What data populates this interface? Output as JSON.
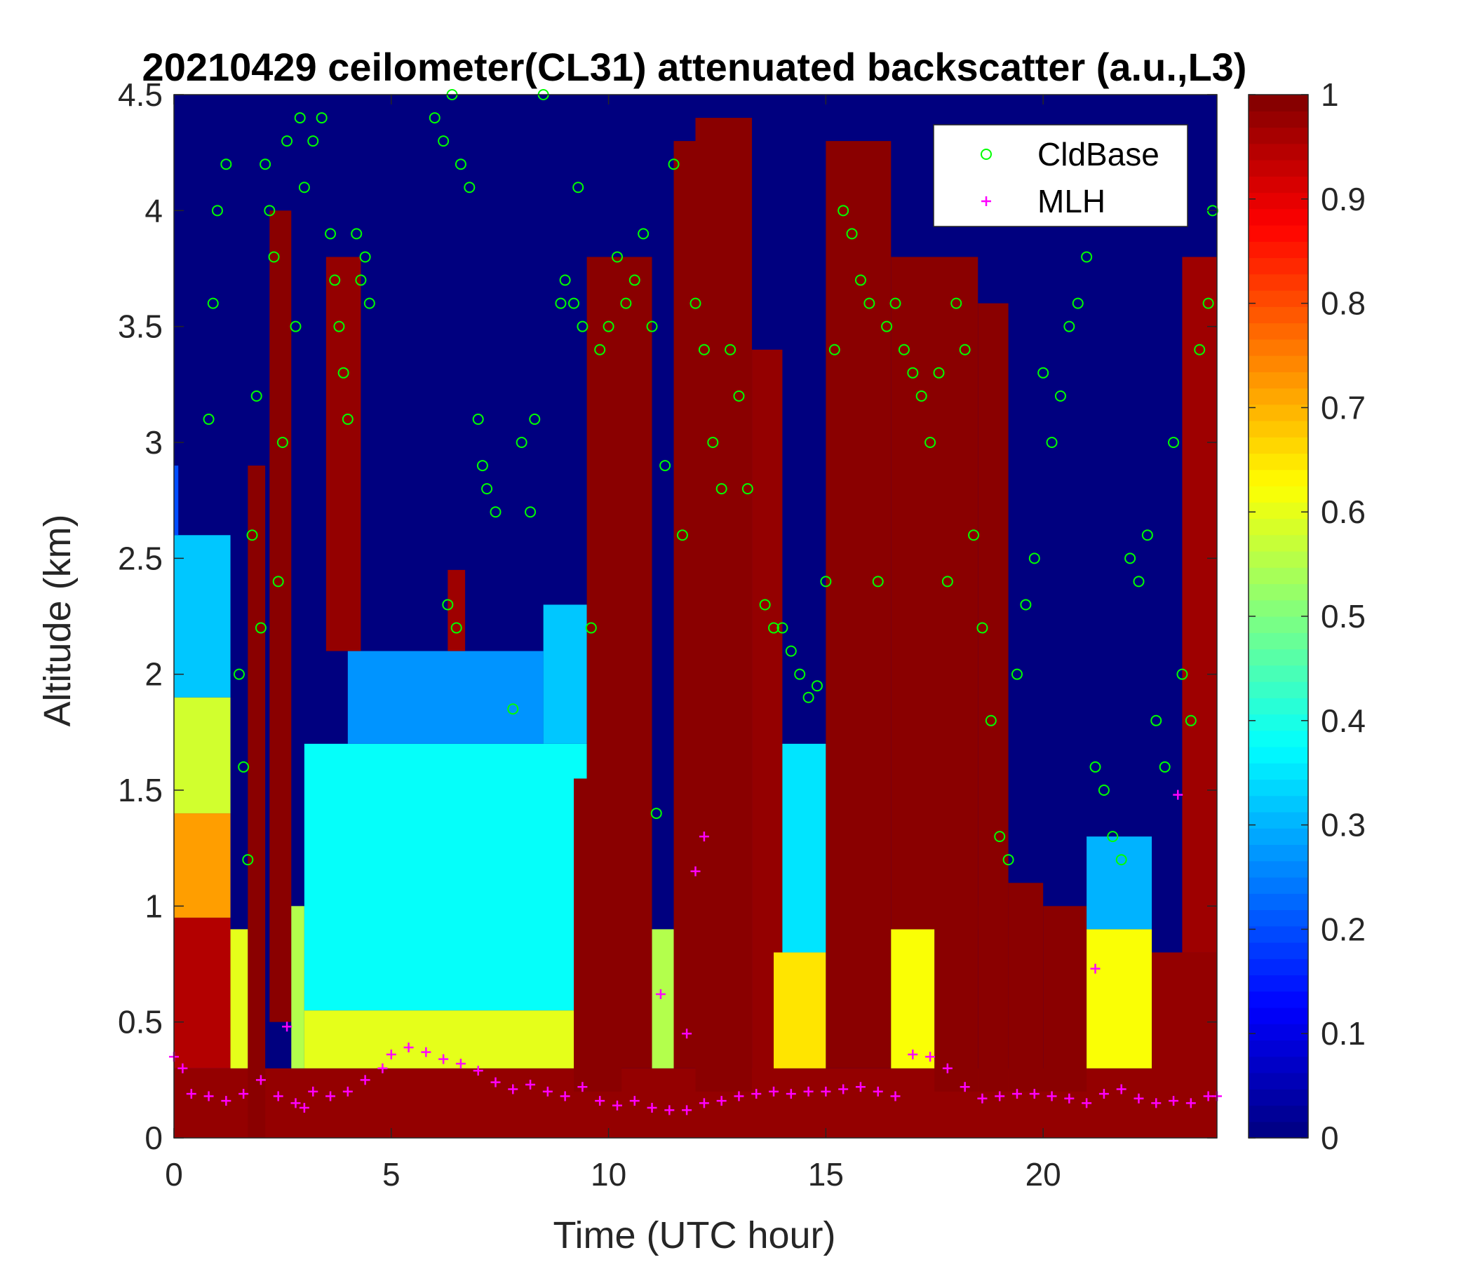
{
  "chart_data": {
    "type": "heatmap",
    "title": "20210429 ceilometer(CL31) attenuated backscatter (a.u.,L3)",
    "xlabel": "Time (UTC hour)",
    "ylabel": "Altitude (km)",
    "xlim": [
      0,
      24
    ],
    "ylim": [
      0,
      4.5
    ],
    "xticks": [
      0,
      5,
      10,
      15,
      20
    ],
    "xtick_labels": [
      "0",
      "5",
      "10",
      "15",
      "20"
    ],
    "yticks": [
      0,
      0.5,
      1,
      1.5,
      2,
      2.5,
      3,
      3.5,
      4,
      4.5
    ],
    "ytick_labels": [
      "0",
      "0.5",
      "1",
      "1.5",
      "2",
      "2.5",
      "3",
      "3.5",
      "4",
      "4.5"
    ],
    "colorbar": {
      "colormap": "jet",
      "clim": [
        0,
        1
      ],
      "ticks": [
        0,
        0.1,
        0.2,
        0.3,
        0.4,
        0.5,
        0.6,
        0.7,
        0.8,
        0.9,
        1
      ],
      "tick_labels": [
        "0",
        "0.1",
        "0.2",
        "0.3",
        "0.4",
        "0.5",
        "0.6",
        "0.7",
        "0.8",
        "0.9",
        "1"
      ]
    },
    "background_colors": [
      "#00007f",
      "#0000ff",
      "#00ffff",
      "#ffff00",
      "#ff0000",
      "#7f0000"
    ],
    "heatmap_regions": [
      {
        "t0": 0,
        "t1": 24,
        "h0": 0,
        "h1": 0.3,
        "v": 0.98
      },
      {
        "t0": 0,
        "t1": 1.3,
        "h0": 0.3,
        "h1": 0.95,
        "v": 0.95
      },
      {
        "t0": 0,
        "t1": 1.3,
        "h0": 0.95,
        "h1": 1.4,
        "v": 0.72
      },
      {
        "t0": 0,
        "t1": 1.3,
        "h0": 1.4,
        "h1": 1.9,
        "v": 0.58
      },
      {
        "t0": 0,
        "t1": 1.3,
        "h0": 1.9,
        "h1": 2.6,
        "v": 0.32
      },
      {
        "t0": 0,
        "t1": 0.1,
        "h0": 2.6,
        "h1": 2.9,
        "v": 0.2
      },
      {
        "t0": 1.3,
        "t1": 1.7,
        "h0": 0.3,
        "h1": 0.9,
        "v": 0.6
      },
      {
        "t0": 1.7,
        "t1": 2.1,
        "h0": 0,
        "h1": 2.9,
        "v": 0.99
      },
      {
        "t0": 2.2,
        "t1": 2.7,
        "h0": 0.5,
        "h1": 4.0,
        "v": 0.99
      },
      {
        "t0": 2.7,
        "t1": 3.0,
        "h0": 0.3,
        "h1": 1.0,
        "v": 0.55
      },
      {
        "t0": 3.0,
        "t1": 9.5,
        "h0": 0.3,
        "h1": 0.55,
        "v": 0.6
      },
      {
        "t0": 3.0,
        "t1": 9.5,
        "h0": 0.55,
        "h1": 1.7,
        "v": 0.38
      },
      {
        "t0": 4.0,
        "t1": 8.5,
        "h0": 1.7,
        "h1": 2.1,
        "v": 0.27
      },
      {
        "t0": 3.5,
        "t1": 4.3,
        "h0": 2.1,
        "h1": 3.8,
        "v": 0.98
      },
      {
        "t0": 6.3,
        "t1": 6.7,
        "h0": 2.1,
        "h1": 2.45,
        "v": 0.97
      },
      {
        "t0": 8.5,
        "t1": 9.5,
        "h0": 1.7,
        "h1": 2.3,
        "v": 0.32
      },
      {
        "t0": 9.2,
        "t1": 10.3,
        "h0": 0.2,
        "h1": 1.55,
        "v": 0.99
      },
      {
        "t0": 9.5,
        "t1": 11.0,
        "h0": 0.3,
        "h1": 3.8,
        "v": 0.99
      },
      {
        "t0": 11.0,
        "t1": 11.5,
        "h0": 0.3,
        "h1": 0.9,
        "v": 0.55
      },
      {
        "t0": 11.5,
        "t1": 12.0,
        "h0": 0.3,
        "h1": 4.3,
        "v": 0.99
      },
      {
        "t0": 12.0,
        "t1": 13.3,
        "h0": 0.2,
        "h1": 4.4,
        "v": 0.99
      },
      {
        "t0": 13.3,
        "t1": 14.0,
        "h0": 0.2,
        "h1": 3.4,
        "v": 0.98
      },
      {
        "t0": 13.8,
        "t1": 15.0,
        "h0": 0.3,
        "h1": 0.8,
        "v": 0.65
      },
      {
        "t0": 14.0,
        "t1": 15.0,
        "h0": 0.8,
        "h1": 1.7,
        "v": 0.35
      },
      {
        "t0": 15.0,
        "t1": 16.5,
        "h0": 0.3,
        "h1": 4.3,
        "v": 0.99
      },
      {
        "t0": 16.5,
        "t1": 17.5,
        "h0": 0.3,
        "h1": 0.9,
        "v": 0.62
      },
      {
        "t0": 16.5,
        "t1": 18.5,
        "h0": 0.9,
        "h1": 3.8,
        "v": 0.99
      },
      {
        "t0": 17.5,
        "t1": 18.5,
        "h0": 0.2,
        "h1": 1.0,
        "v": 0.99
      },
      {
        "t0": 18.5,
        "t1": 19.2,
        "h0": 0.2,
        "h1": 3.6,
        "v": 0.99
      },
      {
        "t0": 19.2,
        "t1": 20.0,
        "h0": 0.2,
        "h1": 1.1,
        "v": 0.99
      },
      {
        "t0": 20.0,
        "t1": 21.0,
        "h0": 0.2,
        "h1": 1.0,
        "v": 0.99
      },
      {
        "t0": 21.0,
        "t1": 22.5,
        "h0": 0.3,
        "h1": 0.9,
        "v": 0.62
      },
      {
        "t0": 21.0,
        "t1": 22.5,
        "h0": 0.9,
        "h1": 1.3,
        "v": 0.3
      },
      {
        "t0": 22.5,
        "t1": 24.0,
        "h0": 0.2,
        "h1": 0.8,
        "v": 0.98
      },
      {
        "t0": 23.2,
        "t1": 24.0,
        "h0": 0.8,
        "h1": 3.8,
        "v": 0.97
      }
    ],
    "series": [
      {
        "name": "CldBase",
        "marker": "circle",
        "color": "#00ff00",
        "points": [
          [
            0.8,
            3.1
          ],
          [
            0.9,
            3.6
          ],
          [
            1.0,
            4.0
          ],
          [
            1.2,
            4.2
          ],
          [
            1.5,
            2.0
          ],
          [
            1.6,
            1.6
          ],
          [
            1.7,
            1.2
          ],
          [
            1.8,
            2.6
          ],
          [
            1.9,
            3.2
          ],
          [
            2.0,
            2.2
          ],
          [
            2.1,
            4.2
          ],
          [
            2.2,
            4.0
          ],
          [
            2.3,
            3.8
          ],
          [
            2.4,
            2.4
          ],
          [
            2.5,
            3.0
          ],
          [
            2.6,
            4.3
          ],
          [
            2.8,
            3.5
          ],
          [
            2.9,
            4.4
          ],
          [
            3.0,
            4.1
          ],
          [
            3.2,
            4.3
          ],
          [
            3.4,
            4.4
          ],
          [
            3.6,
            3.9
          ],
          [
            3.7,
            3.7
          ],
          [
            3.8,
            3.5
          ],
          [
            3.9,
            3.3
          ],
          [
            4.0,
            3.1
          ],
          [
            4.2,
            3.9
          ],
          [
            4.3,
            3.7
          ],
          [
            4.4,
            3.8
          ],
          [
            4.5,
            3.6
          ],
          [
            6.0,
            4.4
          ],
          [
            6.2,
            4.3
          ],
          [
            6.4,
            4.5
          ],
          [
            6.6,
            4.2
          ],
          [
            6.8,
            4.1
          ],
          [
            6.3,
            2.3
          ],
          [
            6.5,
            2.2
          ],
          [
            7.0,
            3.1
          ],
          [
            7.1,
            2.9
          ],
          [
            7.2,
            2.8
          ],
          [
            7.4,
            2.7
          ],
          [
            7.8,
            1.85
          ],
          [
            8.0,
            3.0
          ],
          [
            8.2,
            2.7
          ],
          [
            8.3,
            3.1
          ],
          [
            8.5,
            4.5
          ],
          [
            8.9,
            3.6
          ],
          [
            9.0,
            3.7
          ],
          [
            9.2,
            3.6
          ],
          [
            9.4,
            3.5
          ],
          [
            9.3,
            4.1
          ],
          [
            9.6,
            2.2
          ],
          [
            9.8,
            3.4
          ],
          [
            10.0,
            3.5
          ],
          [
            10.2,
            3.8
          ],
          [
            10.4,
            3.6
          ],
          [
            10.6,
            3.7
          ],
          [
            10.8,
            3.9
          ],
          [
            11.0,
            3.5
          ],
          [
            11.1,
            1.4
          ],
          [
            11.3,
            2.9
          ],
          [
            11.5,
            4.2
          ],
          [
            11.7,
            2.6
          ],
          [
            12.0,
            3.6
          ],
          [
            12.2,
            3.4
          ],
          [
            12.4,
            3.0
          ],
          [
            12.6,
            2.8
          ],
          [
            12.8,
            3.4
          ],
          [
            13.0,
            3.2
          ],
          [
            13.2,
            2.8
          ],
          [
            13.6,
            2.3
          ],
          [
            13.8,
            2.2
          ],
          [
            14.0,
            2.2
          ],
          [
            14.2,
            2.1
          ],
          [
            14.4,
            2.0
          ],
          [
            14.6,
            1.9
          ],
          [
            14.8,
            1.95
          ],
          [
            15.0,
            2.4
          ],
          [
            15.2,
            3.4
          ],
          [
            15.4,
            4.0
          ],
          [
            15.6,
            3.9
          ],
          [
            15.8,
            3.7
          ],
          [
            16.0,
            3.6
          ],
          [
            16.2,
            2.4
          ],
          [
            16.4,
            3.5
          ],
          [
            16.6,
            3.6
          ],
          [
            16.8,
            3.4
          ],
          [
            17.0,
            3.3
          ],
          [
            17.2,
            3.2
          ],
          [
            17.4,
            3.0
          ],
          [
            17.6,
            3.3
          ],
          [
            17.8,
            2.4
          ],
          [
            18.0,
            3.6
          ],
          [
            18.2,
            3.4
          ],
          [
            18.4,
            2.6
          ],
          [
            18.6,
            2.2
          ],
          [
            18.8,
            1.8
          ],
          [
            19.0,
            1.3
          ],
          [
            19.2,
            1.2
          ],
          [
            19.4,
            2.0
          ],
          [
            19.6,
            2.3
          ],
          [
            19.8,
            2.5
          ],
          [
            20.0,
            3.3
          ],
          [
            20.2,
            3.0
          ],
          [
            20.4,
            3.2
          ],
          [
            20.6,
            3.5
          ],
          [
            20.8,
            3.6
          ],
          [
            21.0,
            3.8
          ],
          [
            21.2,
            1.6
          ],
          [
            21.4,
            1.5
          ],
          [
            21.6,
            1.3
          ],
          [
            21.8,
            1.2
          ],
          [
            22.0,
            2.5
          ],
          [
            22.2,
            2.4
          ],
          [
            22.4,
            2.6
          ],
          [
            22.6,
            1.8
          ],
          [
            22.8,
            1.6
          ],
          [
            23.0,
            3.0
          ],
          [
            23.2,
            2.0
          ],
          [
            23.4,
            1.8
          ],
          [
            23.6,
            3.4
          ],
          [
            23.8,
            3.6
          ],
          [
            23.9,
            4.0
          ]
        ]
      },
      {
        "name": "MLH",
        "marker": "plus",
        "color": "#ff00ff",
        "points": [
          [
            0.0,
            0.35
          ],
          [
            0.2,
            0.3
          ],
          [
            0.4,
            0.19
          ],
          [
            0.8,
            0.18
          ],
          [
            1.2,
            0.16
          ],
          [
            1.6,
            0.19
          ],
          [
            2.0,
            0.25
          ],
          [
            2.4,
            0.18
          ],
          [
            2.6,
            0.48
          ],
          [
            2.8,
            0.15
          ],
          [
            3.0,
            0.13
          ],
          [
            3.2,
            0.2
          ],
          [
            3.6,
            0.18
          ],
          [
            4.0,
            0.2
          ],
          [
            4.4,
            0.25
          ],
          [
            4.8,
            0.3
          ],
          [
            5.0,
            0.36
          ],
          [
            5.4,
            0.39
          ],
          [
            5.8,
            0.37
          ],
          [
            6.2,
            0.34
          ],
          [
            6.6,
            0.32
          ],
          [
            7.0,
            0.29
          ],
          [
            7.4,
            0.24
          ],
          [
            7.8,
            0.21
          ],
          [
            8.2,
            0.23
          ],
          [
            8.6,
            0.2
          ],
          [
            9.0,
            0.18
          ],
          [
            9.4,
            0.22
          ],
          [
            9.8,
            0.16
          ],
          [
            10.2,
            0.14
          ],
          [
            10.6,
            0.16
          ],
          [
            11.0,
            0.13
          ],
          [
            11.4,
            0.12
          ],
          [
            11.8,
            0.12
          ],
          [
            12.2,
            0.15
          ],
          [
            12.6,
            0.16
          ],
          [
            13.0,
            0.18
          ],
          [
            13.4,
            0.19
          ],
          [
            13.8,
            0.2
          ],
          [
            14.2,
            0.19
          ],
          [
            14.6,
            0.2
          ],
          [
            15.0,
            0.2
          ],
          [
            15.4,
            0.21
          ],
          [
            15.8,
            0.22
          ],
          [
            16.2,
            0.2
          ],
          [
            16.6,
            0.18
          ],
          [
            17.0,
            0.36
          ],
          [
            17.4,
            0.35
          ],
          [
            17.8,
            0.3
          ],
          [
            18.2,
            0.22
          ],
          [
            18.6,
            0.17
          ],
          [
            19.0,
            0.18
          ],
          [
            19.4,
            0.19
          ],
          [
            19.8,
            0.19
          ],
          [
            20.2,
            0.18
          ],
          [
            20.6,
            0.17
          ],
          [
            21.0,
            0.15
          ],
          [
            21.4,
            0.19
          ],
          [
            21.8,
            0.21
          ],
          [
            22.2,
            0.17
          ],
          [
            22.6,
            0.15
          ],
          [
            23.0,
            0.16
          ],
          [
            23.4,
            0.15
          ],
          [
            23.8,
            0.18
          ],
          [
            24.0,
            0.18
          ],
          [
            11.8,
            0.45
          ],
          [
            12.0,
            1.15
          ],
          [
            12.2,
            1.3
          ],
          [
            11.2,
            0.62
          ],
          [
            21.2,
            0.73
          ],
          [
            23.1,
            1.48
          ]
        ]
      }
    ],
    "legend": {
      "position": "top-right",
      "entries": [
        "CldBase",
        "MLH"
      ]
    }
  }
}
